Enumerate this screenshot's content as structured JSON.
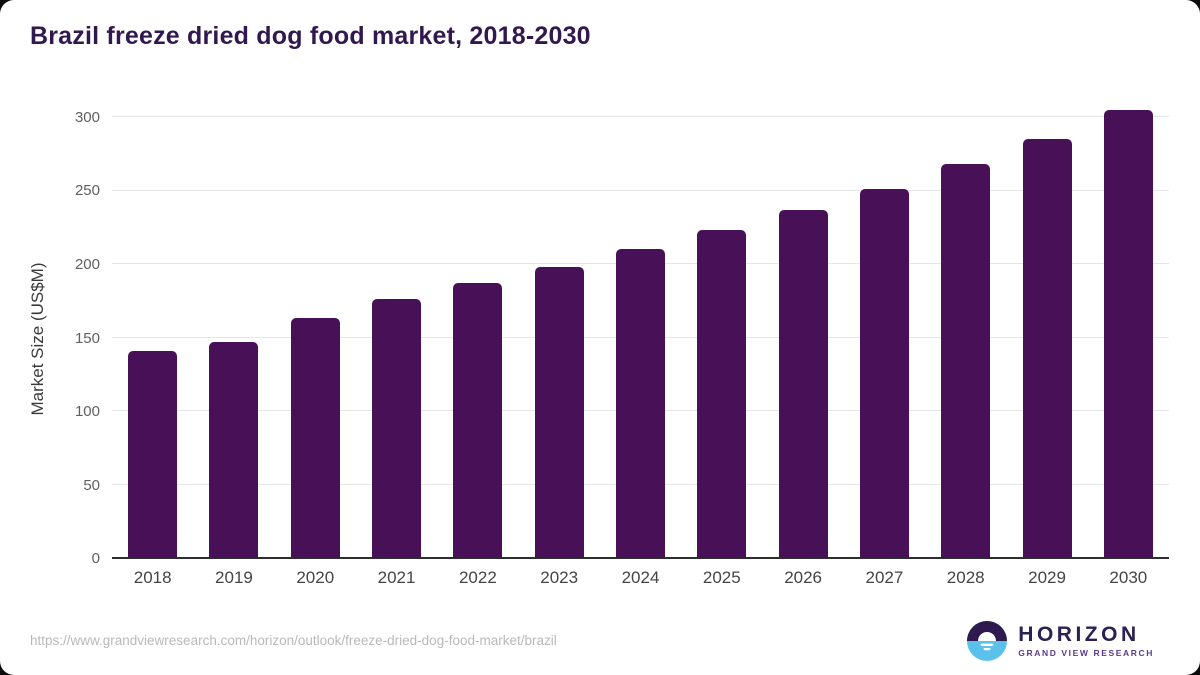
{
  "title": "Brazil freeze dried dog food market, 2018-2030",
  "chart_data": {
    "type": "bar",
    "categories": [
      "2018",
      "2019",
      "2020",
      "2021",
      "2022",
      "2023",
      "2024",
      "2025",
      "2026",
      "2027",
      "2028",
      "2029",
      "2030"
    ],
    "values": [
      141,
      147,
      163,
      176,
      187,
      198,
      210,
      223,
      237,
      251,
      268,
      285,
      305
    ],
    "title": "Brazil freeze dried dog food market, 2018-2030",
    "xlabel": "",
    "ylabel": "Market Size (US$M)",
    "ylim": [
      0,
      300
    ],
    "yticks": [
      0,
      50,
      100,
      150,
      200,
      250,
      300
    ],
    "grid": true,
    "legend": "none",
    "bar_color": "#471057"
  },
  "footer": {
    "source_url": "https://www.grandviewresearch.com/horizon/outlook/freeze-dried-dog-food-market/brazil",
    "logo_name": "HORIZON",
    "logo_tagline": "GRAND VIEW RESEARCH"
  },
  "colors": {
    "title": "#31184f",
    "bar": "#471057",
    "gridline": "#e6e6e6",
    "baseline": "#2e2e2e",
    "axis_text": "#5f5f5f",
    "logo_purple": "#2e1a4e",
    "logo_blue": "#5ac1ea"
  }
}
